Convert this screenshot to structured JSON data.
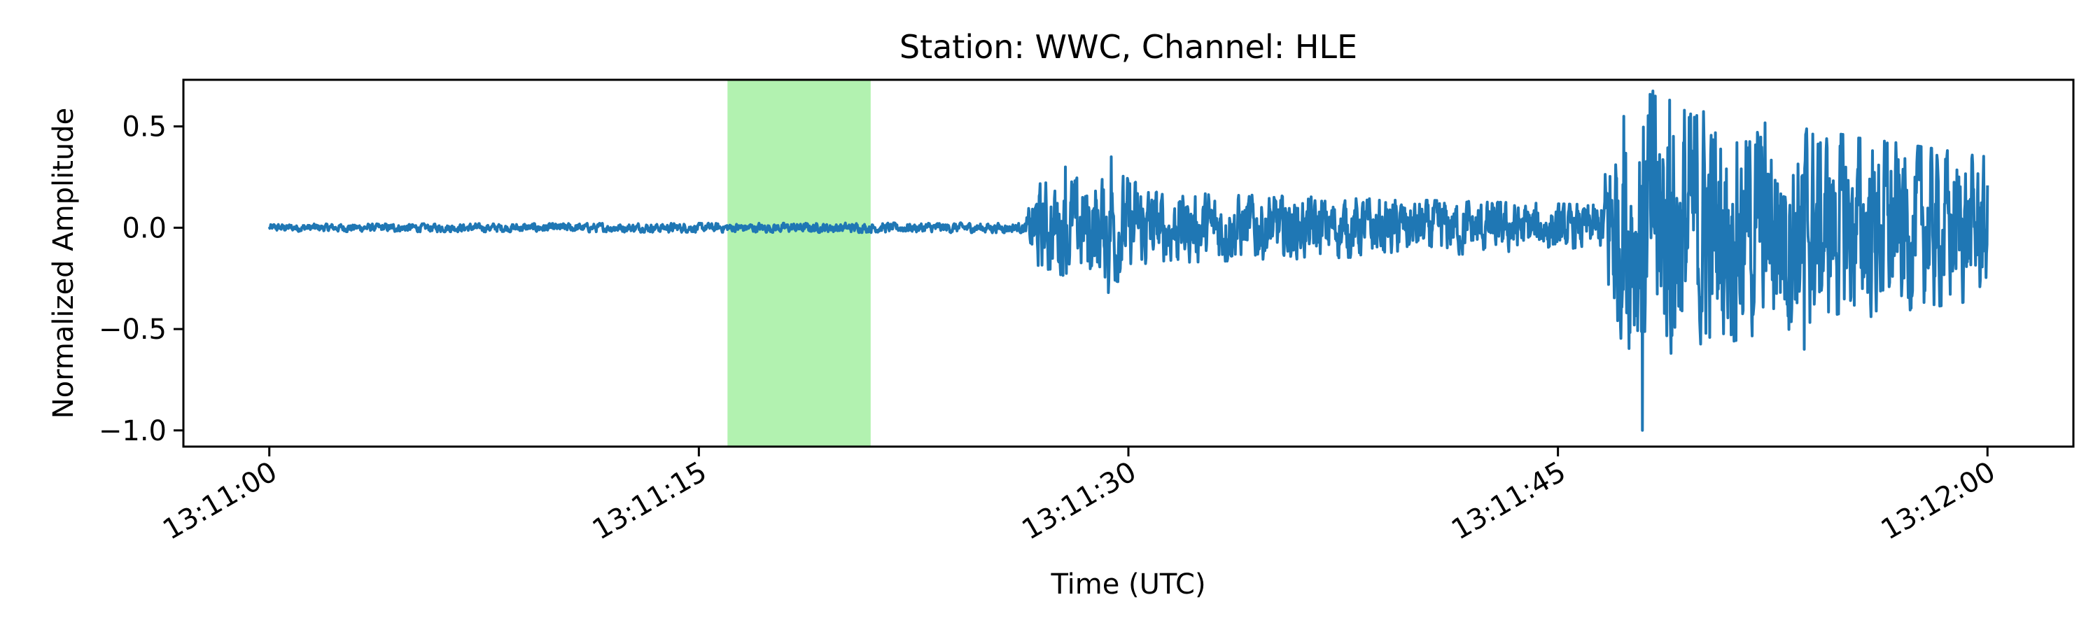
{
  "chart_data": {
    "type": "line",
    "title": "Station: WWC, Channel: HLE",
    "xlabel": "Time (UTC)",
    "ylabel": "Normalized Amplitude",
    "x_ticks": [
      "13:11:00",
      "13:11:15",
      "13:11:30",
      "13:11:45",
      "13:12:00"
    ],
    "x_tick_seconds": [
      0,
      15,
      30,
      45,
      60
    ],
    "y_ticks": [
      "0.5",
      "0.0",
      "−0.5",
      "−1.0"
    ],
    "y_tick_values": [
      0.5,
      0.0,
      -0.5,
      -1.0
    ],
    "xlim": [
      -3,
      63
    ],
    "ylim": [
      -1.08,
      0.73
    ],
    "grid": false,
    "series_color": "#1f77b4",
    "highlight": {
      "start": 16.0,
      "end": 21.0,
      "color": "#b2f2b0"
    },
    "series": [
      {
        "envelope": [
          {
            "t": 0.0,
            "amp": 0.015
          },
          {
            "t": 26.4,
            "amp": 0.02
          },
          {
            "t": 26.7,
            "amp": 0.17
          },
          {
            "t": 29.5,
            "amp": 0.22
          },
          {
            "t": 31.0,
            "amp": 0.14
          },
          {
            "t": 40.0,
            "amp": 0.11
          },
          {
            "t": 46.5,
            "amp": 0.09
          },
          {
            "t": 46.8,
            "amp": 0.38
          },
          {
            "t": 48.0,
            "amp": 0.55
          },
          {
            "t": 52.0,
            "amp": 0.42
          },
          {
            "t": 60.0,
            "amp": 0.28
          }
        ],
        "peaks": [
          {
            "t": 47.3,
            "y": 0.55
          },
          {
            "t": 47.4,
            "y": -0.42
          },
          {
            "t": 47.95,
            "y": -1.0
          },
          {
            "t": 48.4,
            "y": 0.65
          },
          {
            "t": 48.9,
            "y": 0.63
          },
          {
            "t": 53.6,
            "y": -0.6
          },
          {
            "t": 29.4,
            "y": 0.35
          },
          {
            "t": 29.3,
            "y": -0.32
          },
          {
            "t": 27.8,
            "y": 0.3
          }
        ]
      }
    ]
  }
}
